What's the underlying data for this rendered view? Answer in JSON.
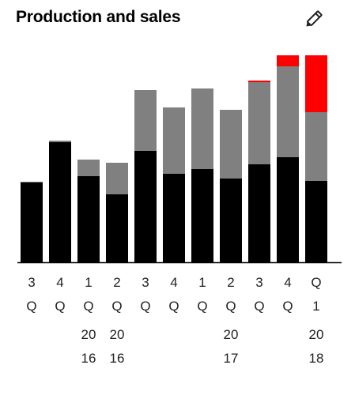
{
  "header": {
    "title": "Production and sales",
    "edit_icon": "pencil-icon"
  },
  "colors": {
    "segment_1": "#000000",
    "segment_2": "#808080",
    "segment_3": "#ff0000",
    "axis": "#000000"
  },
  "chart_data": {
    "type": "bar",
    "stacked": true,
    "categories": [
      "3Q",
      "4Q",
      "1Q",
      "2Q",
      "3Q",
      "4Q",
      "1Q",
      "2Q",
      "3Q",
      "4Q",
      "Q1"
    ],
    "category_label_lines": [
      [
        "3",
        "Q"
      ],
      [
        "4",
        "Q"
      ],
      [
        "1",
        "Q",
        "20",
        "16"
      ],
      [
        "2",
        "Q",
        "20",
        "16"
      ],
      [
        "3",
        "Q"
      ],
      [
        "4",
        "Q"
      ],
      [
        "1",
        "Q"
      ],
      [
        "2",
        "Q",
        "20",
        "17"
      ],
      [
        "3",
        "Q"
      ],
      [
        "4",
        "Q"
      ],
      [
        "Q",
        "1",
        "20",
        "18"
      ]
    ],
    "year_labels": [
      {
        "category_index": 3,
        "lines": [
          "20",
          "16"
        ]
      },
      {
        "category_index": 7,
        "lines": [
          "20",
          "17"
        ]
      },
      {
        "category_index": 10,
        "lines": [
          "20",
          "18"
        ]
      }
    ],
    "series": [
      {
        "values": [
          101,
          152,
          109,
          86,
          141,
          112,
          118,
          106,
          124,
          133,
          103
        ]
      },
      {
        "values": [
          1,
          2,
          21,
          40,
          77,
          84,
          102,
          87,
          104,
          115,
          87
        ]
      },
      {
        "values": [
          0,
          0,
          0,
          0,
          0,
          0,
          0,
          0,
          2,
          14,
          72
        ]
      }
    ],
    "ylim": [
      0,
      264
    ],
    "grid": false,
    "y_axis_visible": false,
    "xlabel": "",
    "ylabel": "",
    "legend": "none"
  }
}
